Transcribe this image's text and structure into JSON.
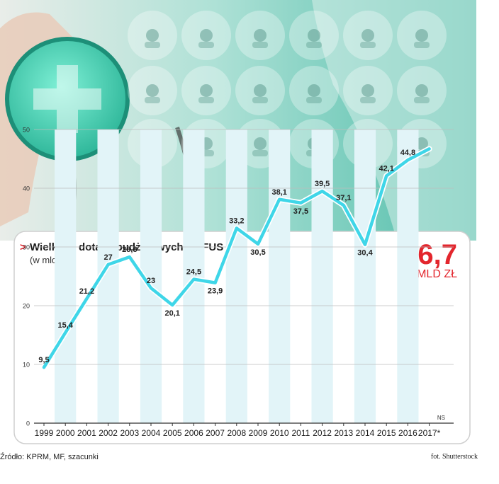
{
  "colors": {
    "line": "#3fd6e8",
    "accent_red": "#e3262d",
    "teal_bg": "#57c3b0",
    "column_stripe": "#e2f4f8"
  },
  "icons": [
    "virus-icon",
    "lungs-icon",
    "organ-icon",
    "eye-icon",
    "kidney-icon",
    "doctor-icon",
    "pill-icon",
    "heart-monitor-icon",
    "iv-drip-icon",
    "clipboard-icon",
    "heart-icon",
    "test-tubes-icon",
    "brain-icon",
    "medical-cross-icon",
    "microscope-icon",
    "medical-bag-icon",
    "ambulance-icon",
    "molecule-icon"
  ],
  "header": {
    "marker": ">",
    "title": "Wielkość dotacji budżetowych do FUS",
    "subtitle": "(w mld zł)",
    "highlight_value": "46,7",
    "highlight_unit": "MLD ZŁ"
  },
  "chart_data": {
    "type": "line",
    "title": "Wielkość dotacji budżetowych do FUS",
    "subtitle": "(w mld zł)",
    "x": [
      "1999",
      "2000",
      "2001",
      "2002",
      "2003",
      "2004",
      "2005",
      "2006",
      "2007",
      "2008",
      "2009",
      "2010",
      "2011",
      "2012",
      "2013",
      "2014",
      "2015",
      "2016",
      "2017"
    ],
    "values": [
      9.5,
      15.4,
      21.2,
      27,
      28.3,
      23,
      20.1,
      24.5,
      23.9,
      33.2,
      30.5,
      38.1,
      37.5,
      39.5,
      37.1,
      30.4,
      42.1,
      44.8,
      46.7
    ],
    "labels": [
      "9,5",
      "15,4",
      "21,2",
      "27",
      "28,3",
      "23",
      "20,1",
      "24,5",
      "23,9",
      "33,2",
      "30,5",
      "38,1",
      "37,5",
      "39,5",
      "37,1",
      "30,4",
      "42,1",
      "44,8",
      ""
    ],
    "x_tick_labels": [
      "1999",
      "2000",
      "2001",
      "2002",
      "2003",
      "2004",
      "2005",
      "2006",
      "2007",
      "2008",
      "2009",
      "2010",
      "2011",
      "2012",
      "2013",
      "2014",
      "2015",
      "2016",
      "2017*"
    ],
    "y_ticks": [
      "0",
      "10",
      "20",
      "30",
      "40",
      "50"
    ],
    "ylim": [
      0,
      50
    ],
    "grid": true,
    "annotation_ns": "NS"
  },
  "footer": {
    "source": "Źródło: KPRM, MF, szacunki",
    "photo_credit": "fot. Shutterstock"
  }
}
